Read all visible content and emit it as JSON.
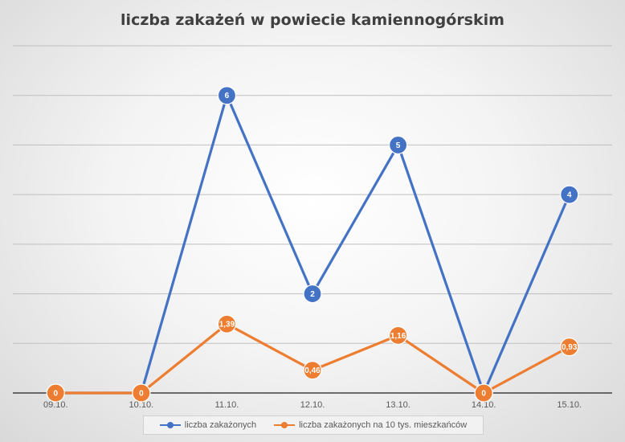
{
  "chart_data": {
    "type": "line",
    "title": "liczba zakażeń w powiecie kamiennogórskim",
    "categories": [
      "09.10.",
      "10.10.",
      "11.10.",
      "12.10.",
      "13.10.",
      "14.10.",
      "15.10."
    ],
    "ylim": [
      0,
      7
    ],
    "grid": true,
    "legend_position": "bottom",
    "series": [
      {
        "name": "liczba zakażonych",
        "color": "#4472c4",
        "values": [
          0,
          0,
          6,
          2,
          5,
          0,
          4
        ],
        "labels": [
          "0",
          "0",
          "6",
          "2",
          "5",
          "0",
          "4"
        ]
      },
      {
        "name": "liczba zakażonych na 10 tys. mieszkańców",
        "color": "#ed7d31",
        "values": [
          0,
          0,
          1.39,
          0.46,
          1.16,
          0,
          0.93
        ],
        "labels": [
          "0",
          "0",
          "1,39",
          "0,46",
          "1,16",
          "0",
          "0,93"
        ]
      }
    ]
  }
}
